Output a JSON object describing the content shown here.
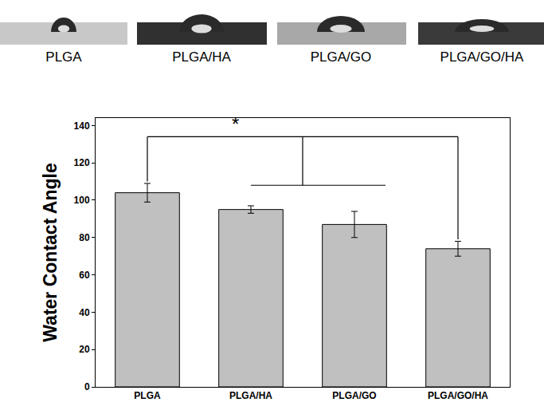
{
  "chart_data": {
    "type": "bar",
    "categories": [
      "PLGA",
      "PLGA/HA",
      "PLGA/GO",
      "PLGA/GO/HA"
    ],
    "values": [
      104,
      95,
      87,
      74
    ],
    "errors": [
      5,
      2,
      7,
      4
    ],
    "color": "#c0c0c0",
    "y_label": "Water Contact Angle",
    "annotations": [
      "*"
    ],
    "ylim": [
      0,
      144
    ],
    "yticks": [
      0,
      20,
      40,
      60,
      80,
      100,
      120,
      140
    ],
    "grid": false
  }
}
